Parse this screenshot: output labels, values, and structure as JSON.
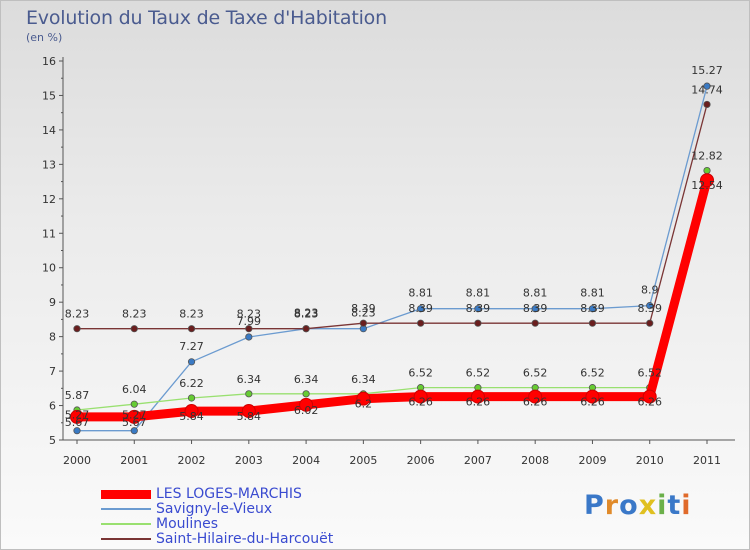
{
  "title": "Evolution du Taux de Taxe d'Habitation",
  "subtitle": "(en %)",
  "logo": {
    "text": "Proxiti"
  },
  "chart_data": {
    "type": "line",
    "title": "Evolution du Taux de Taxe d'Habitation",
    "subtitle": "(en %)",
    "xlabel": "",
    "ylabel": "",
    "x": [
      "2000",
      "2001",
      "2002",
      "2003",
      "2004",
      "2005",
      "2006",
      "2007",
      "2008",
      "2009",
      "2010",
      "2011"
    ],
    "ylim": [
      5,
      16
    ],
    "yticks": [
      "5",
      "6",
      "7",
      "8",
      "9",
      "10",
      "11",
      "12",
      "13",
      "14",
      "15",
      "16"
    ],
    "legend_position": "bottom-left",
    "series": [
      {
        "name": "LES LOGES-MARCHIS",
        "color": "#ff0000",
        "values": [
          5.67,
          5.67,
          5.84,
          5.84,
          6.02,
          6.2,
          6.26,
          6.26,
          6.26,
          6.26,
          6.26,
          12.54
        ],
        "labels": [
          "5.67",
          "5.67",
          "5.84",
          "5.84",
          "6.02",
          "6.2",
          "6.26",
          "6.26",
          "6.26",
          "6.26",
          "6.26",
          "12.54"
        ]
      },
      {
        "name": "Savigny-le-Vieux",
        "color": "#6b9bd0",
        "values": [
          5.27,
          5.27,
          7.27,
          7.99,
          8.23,
          8.23,
          8.81,
          8.81,
          8.81,
          8.81,
          8.9,
          15.27
        ],
        "labels": [
          "5.27",
          "5.27",
          "7.27",
          "7.99",
          "8.23",
          "8.23",
          "8.81",
          "8.81",
          "8.81",
          "8.81",
          "8.9",
          "15.27"
        ]
      },
      {
        "name": "Moulines",
        "color": "#99e070",
        "values": [
          5.87,
          6.04,
          6.22,
          6.34,
          6.34,
          6.34,
          6.52,
          6.52,
          6.52,
          6.52,
          6.52,
          12.82
        ],
        "labels": [
          "5.87",
          "6.04",
          "6.22",
          "6.34",
          "6.34",
          "6.34",
          "6.52",
          "6.52",
          "6.52",
          "6.52",
          "6.52",
          "12.82"
        ]
      },
      {
        "name": "Saint-Hilaire-du-Harcouët",
        "color": "#7a3535",
        "values": [
          8.23,
          8.23,
          8.23,
          8.23,
          8.23,
          8.39,
          8.39,
          8.39,
          8.39,
          8.39,
          8.39,
          14.74
        ],
        "labels": [
          "8.23",
          "8.23",
          "8.23",
          "8.23",
          "8.23",
          "8.39",
          "8.39",
          "8.39",
          "8.39",
          "8.39",
          "8.39",
          "14.74"
        ]
      }
    ]
  }
}
